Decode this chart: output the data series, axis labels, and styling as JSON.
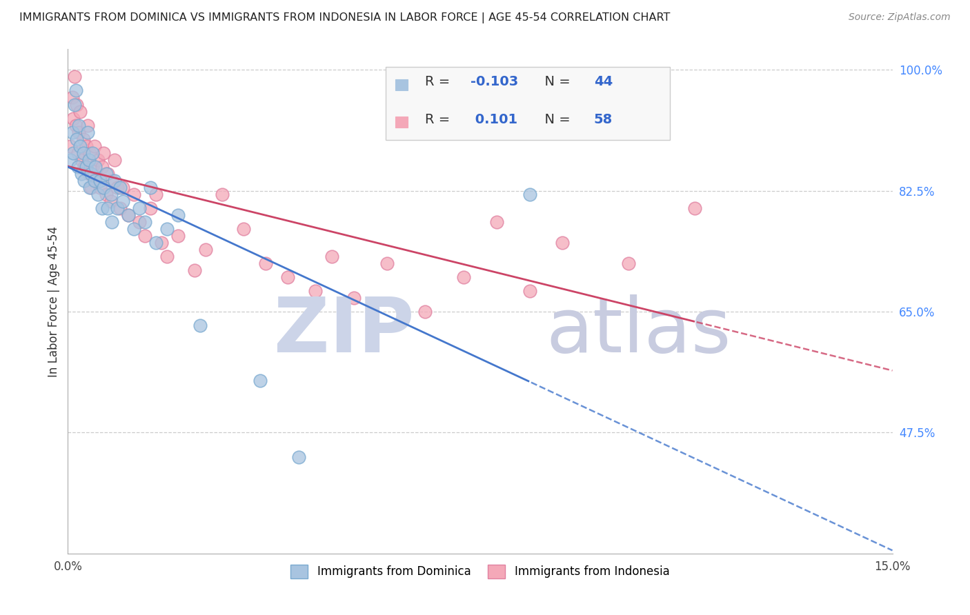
{
  "title": "IMMIGRANTS FROM DOMINICA VS IMMIGRANTS FROM INDONESIA IN LABOR FORCE | AGE 45-54 CORRELATION CHART",
  "source": "Source: ZipAtlas.com",
  "ylabel": "In Labor Force | Age 45-54",
  "x_min": 0.0,
  "x_max": 15.0,
  "y_min": 30.0,
  "y_max": 103.0,
  "y_ticks": [
    47.5,
    65.0,
    82.5,
    100.0
  ],
  "y_tick_labels": [
    "47.5%",
    "65.0%",
    "82.5%",
    "100.0%"
  ],
  "dominica_color": "#a8c4e0",
  "dominica_edge": "#7aaad0",
  "indonesia_color": "#f4a8b8",
  "indonesia_edge": "#e080a0",
  "dominica_line_color": "#4477cc",
  "indonesia_line_color": "#cc4466",
  "dominica_R": -0.103,
  "dominica_N": 44,
  "indonesia_R": 0.101,
  "indonesia_N": 58,
  "legend_label_dominica": "Immigrants from Dominica",
  "legend_label_indonesia": "Immigrants from Indonesia",
  "dominica_x": [
    0.05,
    0.08,
    0.1,
    0.12,
    0.14,
    0.16,
    0.18,
    0.2,
    0.22,
    0.25,
    0.28,
    0.3,
    0.33,
    0.36,
    0.38,
    0.4,
    0.42,
    0.45,
    0.48,
    0.5,
    0.55,
    0.58,
    0.62,
    0.65,
    0.7,
    0.72,
    0.78,
    0.8,
    0.85,
    0.9,
    0.95,
    1.0,
    1.1,
    1.2,
    1.3,
    1.4,
    1.5,
    1.6,
    1.8,
    2.0,
    2.4,
    3.5,
    4.2,
    8.4
  ],
  "dominica_y": [
    87,
    91,
    88,
    95,
    97,
    90,
    86,
    92,
    89,
    85,
    88,
    84,
    86,
    91,
    87,
    83,
    85,
    88,
    84,
    86,
    82,
    84,
    80,
    83,
    85,
    80,
    82,
    78,
    84,
    80,
    83,
    81,
    79,
    77,
    80,
    78,
    83,
    75,
    77,
    79,
    63,
    55,
    44,
    82
  ],
  "indonesia_x": [
    0.05,
    0.08,
    0.1,
    0.12,
    0.14,
    0.16,
    0.18,
    0.2,
    0.22,
    0.25,
    0.28,
    0.3,
    0.33,
    0.36,
    0.38,
    0.4,
    0.42,
    0.45,
    0.48,
    0.5,
    0.55,
    0.58,
    0.62,
    0.65,
    0.7,
    0.72,
    0.78,
    0.8,
    0.85,
    0.9,
    0.95,
    1.0,
    1.1,
    1.2,
    1.3,
    1.4,
    1.5,
    1.6,
    1.7,
    1.8,
    2.0,
    2.3,
    2.5,
    2.8,
    3.2,
    3.6,
    4.0,
    4.5,
    4.8,
    5.2,
    5.8,
    6.5,
    7.2,
    7.8,
    8.4,
    9.0,
    10.2,
    11.4
  ],
  "indonesia_y": [
    89,
    96,
    93,
    99,
    92,
    95,
    88,
    91,
    94,
    87,
    90,
    86,
    89,
    92,
    85,
    88,
    83,
    86,
    89,
    84,
    87,
    83,
    86,
    88,
    82,
    85,
    81,
    84,
    87,
    83,
    80,
    83,
    79,
    82,
    78,
    76,
    80,
    82,
    75,
    73,
    76,
    71,
    74,
    82,
    77,
    72,
    70,
    68,
    73,
    67,
    72,
    65,
    70,
    78,
    68,
    75,
    72,
    80
  ]
}
